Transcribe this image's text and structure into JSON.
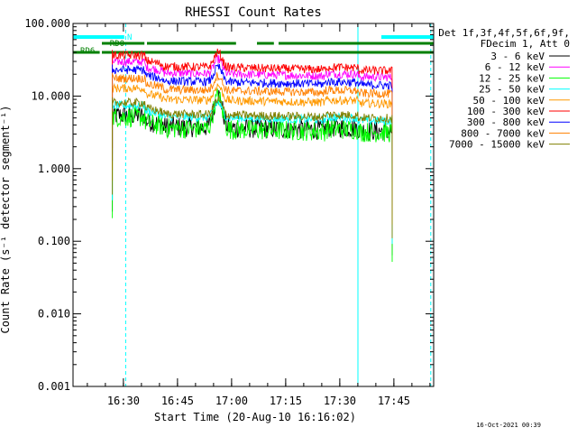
{
  "chart_data": {
    "type": "line",
    "title": "RHESSI Count Rates",
    "xlabel": "Start Time (20-Aug-10 16:16:02)",
    "ylabel": "Count Rate (s⁻¹ detector segment⁻¹)",
    "yscale": "log",
    "ylim": [
      0.001,
      100
    ],
    "xlim_minutes_after_start": [
      0,
      100
    ],
    "y_ticks": [
      "0.001",
      "0.010",
      "0.100",
      "1.000",
      "10.000",
      "100.000"
    ],
    "x_ticks": [
      {
        "label": "16:30",
        "minute": 13.97
      },
      {
        "label": "16:45",
        "minute": 28.97
      },
      {
        "label": "17:00",
        "minute": 43.97
      },
      {
        "label": "17:15",
        "minute": 58.97
      },
      {
        "label": "17:30",
        "minute": 73.97
      },
      {
        "label": "17:45",
        "minute": 88.97
      }
    ],
    "legend_header": [
      "Det 1f,3f,4f,5f,6f,9f,",
      "FDecim 1, Att 0"
    ],
    "legend_placement": "right",
    "series": [
      {
        "name": "3 - 6 keV",
        "color": "#000000",
        "level": 3.2,
        "base": 4.0
      },
      {
        "name": "6 - 12 keV",
        "color": "#ff00ff",
        "level": 20,
        "base": 22
      },
      {
        "name": "12 - 25 keV",
        "color": "#00ff00",
        "level": 2.6,
        "base": 3.8
      },
      {
        "name": "25 - 50 keV",
        "color": "#00ffff",
        "level": 4.6,
        "base": 5.5
      },
      {
        "name": "50 - 100 keV",
        "color": "#ff9900",
        "level": 8.5,
        "base": 9.5
      },
      {
        "name": "100 - 300 keV",
        "color": "#ff0000",
        "level": 24,
        "base": 27
      },
      {
        "name": "300 - 800 keV",
        "color": "#0000ff",
        "level": 16,
        "base": 17
      },
      {
        "name": "800 - 7000 keV",
        "color": "#ff8000",
        "level": 12,
        "base": 13
      },
      {
        "name": "7000 - 15000 keV",
        "color": "#808000",
        "level": 5.5,
        "base": 6.0
      }
    ],
    "data_window_minutes": [
      10.9,
      88.5
    ],
    "flare_peak_minute": 40.2,
    "attenuator_bars": [
      {
        "label": "N",
        "color": "#00ffff",
        "segments": [
          [
            0,
            14.2
          ],
          [
            85.5,
            100
          ]
        ]
      },
      {
        "label": "RD0",
        "color": "#008000",
        "segments": [
          [
            8,
            19.8
          ],
          [
            20.5,
            45.2
          ],
          [
            51.0,
            55.7
          ],
          [
            57.0,
            100
          ]
        ]
      },
      {
        "label": "RD6",
        "color": "#008000",
        "segments": [
          [
            0,
            7.4
          ],
          [
            8,
            100
          ]
        ]
      }
    ],
    "bar_labels_extra": [
      "RD0",
      "RD6"
    ],
    "vertical_markers": [
      {
        "minute": 0,
        "color": "#00ffff",
        "style": "solid"
      },
      {
        "minute": 14.6,
        "color": "#00ffff",
        "style": "dashed"
      },
      {
        "minute": 79.0,
        "color": "#00ffff",
        "style": "solid"
      },
      {
        "minute": 99.2,
        "color": "#00ffff",
        "style": "dashed"
      }
    ],
    "grid": false
  },
  "footer": {
    "timestamp": "16-Oct-2021 00:39"
  }
}
